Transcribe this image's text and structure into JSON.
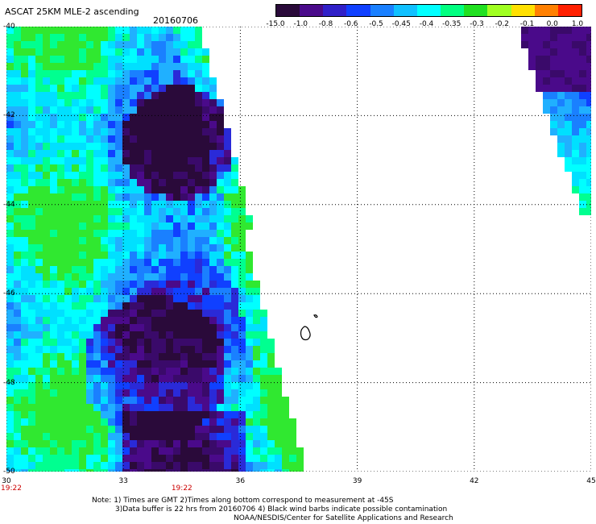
{
  "header": {
    "product": "ASCAT 25KM MLE-2 ascending",
    "date": "20160706"
  },
  "colorbar": {
    "labels": [
      "-15.0",
      "-1.0",
      "-0.8",
      "-0.6",
      "-0.5",
      "-0.45",
      "-0.4",
      "-0.35",
      "-0.3",
      "-0.2",
      "-0.1",
      "0.0",
      "1.0"
    ],
    "colors": [
      "#2a0a3a",
      "#4a0a8a",
      "#3020c8",
      "#1040ff",
      "#1a80ff",
      "#10c0ff",
      "#00ffff",
      "#00ff80",
      "#20e020",
      "#a0ff20",
      "#ffe000",
      "#ff8000",
      "#ff2000"
    ]
  },
  "axes": {
    "lon_labels": [
      "30",
      "33",
      "36",
      "39",
      "42",
      "45"
    ],
    "lat_labels": [
      "-40",
      "-42",
      "-44",
      "-46",
      "-48",
      "-50"
    ],
    "lon_range": [
      30,
      45
    ],
    "lat_range": [
      -50,
      -40
    ]
  },
  "time_labels": [
    "19:22",
    "19:22"
  ],
  "notes": {
    "line1": "Note: 1) Times are GMT 2)Times along bottom correspond to measurement at -45S",
    "line2": "3)Data buffer is 22 hrs from 20160706 4) Black wind barbs indicate possible contamination",
    "line3": "NOAA/NESDIS/Center for Satellite Applications and Research"
  }
}
